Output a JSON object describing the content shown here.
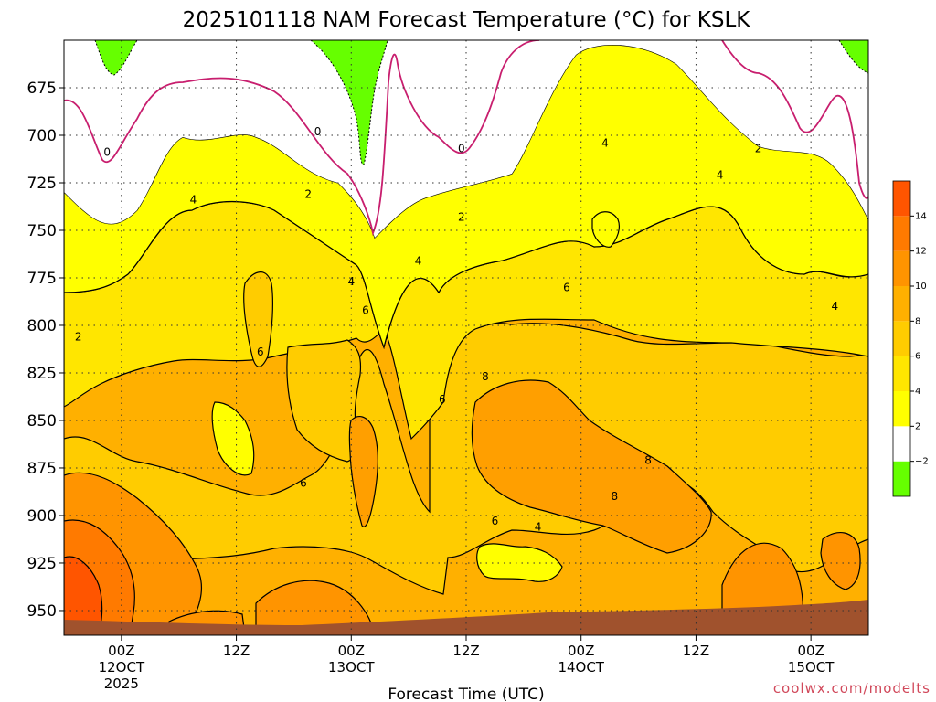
{
  "title": "2025101118 NAM Forecast Temperature (°C) for KSLK",
  "credit": "coolwx.com/modelts",
  "chart_data": {
    "type": "heatmap",
    "title": "2025101118 NAM Forecast Temperature (°C) for KSLK",
    "xlabel": "Forecast Time (UTC)",
    "ylabel": "",
    "x_ticks": [
      {
        "label": "00Z",
        "sub": "12OCT",
        "sub2": "2025"
      },
      {
        "label": "12Z",
        "sub": "",
        "sub2": ""
      },
      {
        "label": "00Z",
        "sub": "13OCT",
        "sub2": ""
      },
      {
        "label": "12Z",
        "sub": "",
        "sub2": ""
      },
      {
        "label": "00Z",
        "sub": "14OCT",
        "sub2": ""
      },
      {
        "label": "12Z",
        "sub": "",
        "sub2": ""
      },
      {
        "label": "00Z",
        "sub": "15OCT",
        "sub2": ""
      }
    ],
    "x_hours": [
      0,
      12,
      24,
      36,
      48,
      60,
      72
    ],
    "x_range_hours": [
      -6,
      78
    ],
    "y_ticks": [
      675,
      700,
      725,
      750,
      775,
      800,
      825,
      850,
      875,
      900,
      925,
      950
    ],
    "y_range": [
      650,
      963
    ],
    "grid": true,
    "colorbar": {
      "levels": [
        -2,
        2,
        4,
        6,
        8,
        10,
        12,
        14,
        16
      ],
      "labels": [
        "−2",
        "2",
        "4",
        "6",
        "8",
        "10",
        "12",
        "14"
      ],
      "colors": [
        "#66ff00",
        "#ffffff",
        "#ffff00",
        "#ffe600",
        "#ffcc00",
        "#ffb000",
        "#ff9400",
        "#ff7a00",
        "#ff5500"
      ]
    },
    "contour_labels": [
      {
        "text": "0",
        "t": -1.5,
        "p": 709
      },
      {
        "text": "0",
        "t": 20.5,
        "p": 698
      },
      {
        "text": "0",
        "t": 35.5,
        "p": 707
      },
      {
        "text": "2",
        "t": -4.5,
        "p": 806
      },
      {
        "text": "2",
        "t": 19.5,
        "p": 731
      },
      {
        "text": "2",
        "t": 35.5,
        "p": 743
      },
      {
        "text": "2",
        "t": 66.5,
        "p": 707
      },
      {
        "text": "4",
        "t": 7.5,
        "p": 734
      },
      {
        "text": "4",
        "t": 24,
        "p": 777
      },
      {
        "text": "4",
        "t": 31,
        "p": 766
      },
      {
        "text": "4",
        "t": 50.5,
        "p": 704
      },
      {
        "text": "4",
        "t": 62.5,
        "p": 721
      },
      {
        "text": "4",
        "t": 74.5,
        "p": 790
      },
      {
        "text": "4",
        "t": 43.5,
        "p": 906
      },
      {
        "text": "6",
        "t": 14.5,
        "p": 814
      },
      {
        "text": "6",
        "t": 25.5,
        "p": 792
      },
      {
        "text": "6",
        "t": 33.5,
        "p": 839
      },
      {
        "text": "6",
        "t": 19,
        "p": 883
      },
      {
        "text": "6",
        "t": 46.5,
        "p": 780
      },
      {
        "text": "6",
        "t": 39,
        "p": 903
      },
      {
        "text": "8",
        "t": 38,
        "p": 827
      },
      {
        "text": "8",
        "t": 55,
        "p": 871
      },
      {
        "text": "8",
        "t": 51.5,
        "p": 890
      }
    ]
  }
}
